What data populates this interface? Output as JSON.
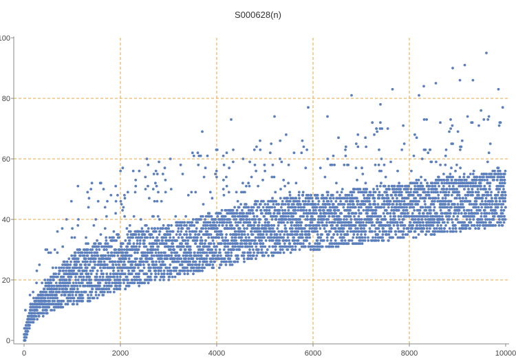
{
  "chart_data": {
    "type": "scatter",
    "title": "S000628(n)",
    "xlabel": "",
    "ylabel": "",
    "xlim": [
      0,
      10000
    ],
    "ylim": [
      0,
      100
    ],
    "x_ticks": [
      0,
      2000,
      4000,
      6000,
      8000,
      10000
    ],
    "y_ticks": [
      0,
      20,
      40,
      60,
      80,
      100
    ],
    "grid": true,
    "legend": "none",
    "colors": {
      "points": "#5b7fbd",
      "grid": "#e8a03c",
      "axis": "#888888"
    },
    "n_points": 10000,
    "trend": [
      [
        0,
        1
      ],
      [
        100,
        7
      ],
      [
        200,
        10
      ],
      [
        500,
        15
      ],
      [
        1000,
        21
      ],
      [
        1500,
        24
      ],
      [
        2000,
        27
      ],
      [
        3000,
        30
      ],
      [
        4000,
        34
      ],
      [
        5000,
        38
      ],
      [
        6000,
        40
      ],
      [
        7000,
        42
      ],
      [
        8000,
        44
      ],
      [
        9000,
        46
      ],
      [
        10000,
        48
      ]
    ],
    "spread_down": 10,
    "spread_up_median": 12,
    "outliers": [
      [
        9600,
        95
      ],
      [
        9150,
        91
      ],
      [
        8550,
        85
      ],
      [
        9320,
        86
      ],
      [
        7650,
        83
      ],
      [
        8200,
        81
      ],
      [
        9850,
        83
      ],
      [
        6800,
        81
      ],
      [
        7400,
        78
      ],
      [
        5900,
        77
      ],
      [
        5200,
        74
      ],
      [
        4300,
        73
      ],
      [
        3700,
        69
      ],
      [
        2550,
        60
      ],
      [
        1650,
        50
      ],
      [
        8900,
        90
      ],
      [
        9050,
        86
      ],
      [
        8300,
        84
      ],
      [
        6300,
        74
      ],
      [
        4900,
        66
      ]
    ]
  }
}
